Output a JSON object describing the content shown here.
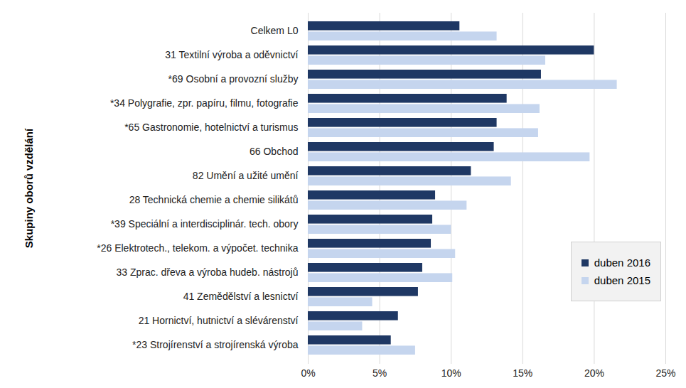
{
  "chart_data": {
    "type": "bar",
    "orientation": "horizontal",
    "ylabel": "Skupiny oborů vzdělání",
    "categories": [
      "Celkem L0",
      "31 Textilní výroba a oděvnictví",
      "*69 Osobní a provozní služby",
      "*34 Polygrafie, zpr. papíru, filmu, fotografie",
      "*65 Gastronomie, hotelnictví a turismus",
      "66 Obchod",
      "82 Umění a užité umění",
      "28 Technická chemie a chemie silikátů",
      "*39 Speciální a interdisciplinár. tech. obory",
      "*26 Elektrotech., telekom. a výpočet. technika",
      "33 Zprac. dřeva a výroba hudeb. nástrojů",
      "41 Zemědělství a lesnictví",
      "21 Hornictví, hutnictví a slévárenství",
      "*23 Strojírenství a strojírenská výroba"
    ],
    "series": [
      {
        "name": "duben 2016",
        "color": "#1f3864",
        "values": [
          10.6,
          20.0,
          16.3,
          13.9,
          13.2,
          13.0,
          11.4,
          8.9,
          8.7,
          8.6,
          8.0,
          7.7,
          6.3,
          5.8
        ]
      },
      {
        "name": "duben 2015",
        "color": "#c5d5ee",
        "values": [
          13.2,
          16.6,
          21.6,
          16.2,
          16.1,
          19.7,
          14.2,
          11.1,
          10.0,
          10.3,
          10.1,
          4.5,
          3.8,
          7.5
        ]
      }
    ],
    "xlim": [
      0,
      25
    ],
    "xticks": [
      {
        "value": 0,
        "label": "0%"
      },
      {
        "value": 5,
        "label": "5%"
      },
      {
        "value": 10,
        "label": "10%"
      },
      {
        "value": 15,
        "label": "15%"
      },
      {
        "value": 20,
        "label": "20%"
      },
      {
        "value": 25,
        "label": "25%"
      }
    ],
    "grid": true,
    "legend": "lower right"
  }
}
